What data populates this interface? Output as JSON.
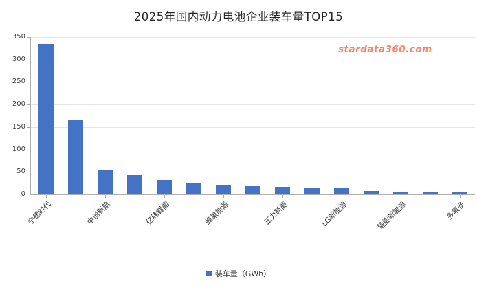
{
  "header": {
    "title": "2025年国内动力电池企业装车量TOP15"
  },
  "watermark": {
    "text": "stardata360.com",
    "color": "#F4876B"
  },
  "legend": {
    "label": "装车量（GWh）"
  },
  "colors": {
    "bar": "#4472C4",
    "gridline": "#E4E4E4",
    "axis": "#ADADAD",
    "tick_text": "#3F3F3F",
    "title_text": "#262626"
  },
  "chart_data": {
    "type": "bar",
    "title": "2025年国内动力电池企业装车量TOP15",
    "categories": [
      "宁德时代",
      "",
      "中创新航",
      "",
      "亿纬锂能",
      "",
      "蜂巢能源",
      "",
      "正力新能",
      "",
      "LG新能源",
      "",
      "楚能新能源",
      "",
      "多氟多"
    ],
    "values": [
      334,
      165,
      53,
      44,
      32,
      25,
      21,
      19,
      17,
      15,
      14,
      8,
      6,
      5,
      4
    ],
    "series_name": "装车量（GWh）",
    "xlabel": "",
    "ylabel": "",
    "ylim": [
      0,
      350
    ],
    "yticks": [
      0,
      50,
      100,
      150,
      200,
      250,
      300,
      350
    ],
    "grid": true,
    "legend_position": "bottom",
    "x_tick_label_rotation": -45,
    "labeled_category_indices": [
      0,
      2,
      4,
      6,
      8,
      10,
      12,
      14
    ]
  }
}
